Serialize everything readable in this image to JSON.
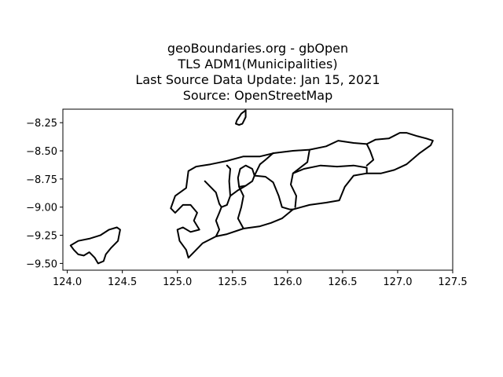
{
  "figure": {
    "title_lines": [
      "geoBoundaries.org - gbOpen",
      "TLS ADM1(Municipalities)",
      "Last Source Data Update: Jan 15, 2021",
      "Source: OpenStreetMap"
    ]
  },
  "chart_data": {
    "type": "map",
    "title": "geoBoundaries.org - gbOpen TLS ADM1(Municipalities) Last Source Data Update: Jan 15, 2021 Source: OpenStreetMap",
    "xlabel": "",
    "ylabel": "",
    "xlim": [
      123.96,
      127.5
    ],
    "ylim": [
      -9.56,
      -8.13
    ],
    "x_ticks": [
      124.0,
      124.5,
      125.0,
      125.5,
      126.0,
      126.5,
      127.0,
      127.5
    ],
    "x_tick_labels": [
      "124.0",
      "124.5",
      "125.0",
      "125.5",
      "126.0",
      "126.5",
      "127.0",
      "127.5"
    ],
    "y_ticks": [
      -8.25,
      -8.5,
      -8.75,
      -9.0,
      -9.25,
      -9.5
    ],
    "y_tick_labels": [
      "−8.25",
      "−8.50",
      "−8.75",
      "−9.00",
      "−9.25",
      "−9.50"
    ],
    "grid": false,
    "features": [
      {
        "name": "mainland-outline",
        "coords": [
          [
            124.94,
            -9.01
          ],
          [
            124.98,
            -8.9
          ],
          [
            125.08,
            -8.83
          ],
          [
            125.1,
            -8.68
          ],
          [
            125.17,
            -8.64
          ],
          [
            125.3,
            -8.62
          ],
          [
            125.45,
            -8.59
          ],
          [
            125.6,
            -8.55
          ],
          [
            125.75,
            -8.55
          ],
          [
            125.88,
            -8.52
          ],
          [
            126.05,
            -8.5
          ],
          [
            126.2,
            -8.49
          ],
          [
            126.35,
            -8.46
          ],
          [
            126.46,
            -8.41
          ],
          [
            126.6,
            -8.43
          ],
          [
            126.72,
            -8.44
          ],
          [
            126.8,
            -8.4
          ],
          [
            126.92,
            -8.39
          ],
          [
            127.02,
            -8.34
          ],
          [
            127.08,
            -8.34
          ],
          [
            127.18,
            -8.37
          ],
          [
            127.26,
            -8.39
          ],
          [
            127.32,
            -8.41
          ],
          [
            127.3,
            -8.45
          ],
          [
            127.2,
            -8.52
          ],
          [
            127.08,
            -8.62
          ],
          [
            126.97,
            -8.67
          ],
          [
            126.85,
            -8.7
          ],
          [
            126.72,
            -8.7
          ],
          [
            126.6,
            -8.72
          ],
          [
            126.52,
            -8.82
          ],
          [
            126.47,
            -8.94
          ],
          [
            126.35,
            -8.96
          ],
          [
            126.2,
            -8.98
          ],
          [
            126.05,
            -9.02
          ],
          [
            125.95,
            -9.1
          ],
          [
            125.85,
            -9.14
          ],
          [
            125.75,
            -9.17
          ],
          [
            125.6,
            -9.19
          ],
          [
            125.45,
            -9.24
          ],
          [
            125.35,
            -9.26
          ],
          [
            125.23,
            -9.32
          ],
          [
            125.15,
            -9.4
          ],
          [
            125.1,
            -9.45
          ],
          [
            125.08,
            -9.38
          ],
          [
            125.02,
            -9.3
          ],
          [
            125.0,
            -9.2
          ],
          [
            125.05,
            -9.18
          ],
          [
            125.12,
            -9.22
          ],
          [
            125.2,
            -9.2
          ],
          [
            125.15,
            -9.12
          ],
          [
            125.18,
            -9.05
          ],
          [
            125.12,
            -8.98
          ],
          [
            125.05,
            -8.98
          ],
          [
            124.98,
            -9.05
          ],
          [
            124.94,
            -9.01
          ]
        ]
      },
      {
        "name": "oecusse-outline",
        "coords": [
          [
            124.03,
            -9.34
          ],
          [
            124.1,
            -9.3
          ],
          [
            124.2,
            -9.28
          ],
          [
            124.3,
            -9.25
          ],
          [
            124.38,
            -9.2
          ],
          [
            124.45,
            -9.18
          ],
          [
            124.48,
            -9.2
          ],
          [
            124.46,
            -9.3
          ],
          [
            124.4,
            -9.36
          ],
          [
            124.35,
            -9.42
          ],
          [
            124.33,
            -9.48
          ],
          [
            124.28,
            -9.5
          ],
          [
            124.25,
            -9.45
          ],
          [
            124.2,
            -9.4
          ],
          [
            124.15,
            -9.43
          ],
          [
            124.1,
            -9.42
          ],
          [
            124.06,
            -9.38
          ],
          [
            124.03,
            -9.34
          ]
        ]
      },
      {
        "name": "atauro-outline",
        "coords": [
          [
            125.54,
            -8.23
          ],
          [
            125.58,
            -8.17
          ],
          [
            125.62,
            -8.14
          ],
          [
            125.62,
            -8.2
          ],
          [
            125.59,
            -8.26
          ],
          [
            125.56,
            -8.27
          ],
          [
            125.53,
            -8.26
          ],
          [
            125.54,
            -8.23
          ]
        ]
      },
      {
        "name": "internal-boundary-1",
        "coords": [
          [
            125.25,
            -8.77
          ],
          [
            125.35,
            -8.87
          ],
          [
            125.38,
            -8.97
          ],
          [
            125.4,
            -9.0
          ],
          [
            125.45,
            -8.98
          ],
          [
            125.48,
            -8.9
          ],
          [
            125.47,
            -8.77
          ],
          [
            125.48,
            -8.66
          ],
          [
            125.45,
            -8.63
          ]
        ]
      },
      {
        "name": "internal-boundary-2",
        "coords": [
          [
            125.4,
            -9.0
          ],
          [
            125.38,
            -9.05
          ],
          [
            125.35,
            -9.12
          ],
          [
            125.38,
            -9.2
          ],
          [
            125.35,
            -9.26
          ]
        ]
      },
      {
        "name": "internal-boundary-3",
        "coords": [
          [
            125.48,
            -8.9
          ],
          [
            125.55,
            -8.85
          ],
          [
            125.62,
            -8.81
          ],
          [
            125.68,
            -8.77
          ],
          [
            125.7,
            -8.72
          ],
          [
            125.68,
            -8.66
          ],
          [
            125.62,
            -8.63
          ],
          [
            125.57,
            -8.66
          ],
          [
            125.55,
            -8.74
          ],
          [
            125.56,
            -8.82
          ],
          [
            125.62,
            -8.81
          ]
        ]
      },
      {
        "name": "internal-boundary-4",
        "coords": [
          [
            125.56,
            -8.82
          ],
          [
            125.6,
            -8.9
          ],
          [
            125.58,
            -9.0
          ],
          [
            125.55,
            -9.1
          ],
          [
            125.6,
            -9.19
          ]
        ]
      },
      {
        "name": "internal-boundary-5",
        "coords": [
          [
            125.7,
            -8.72
          ],
          [
            125.8,
            -8.73
          ],
          [
            125.87,
            -8.78
          ],
          [
            125.92,
            -8.9
          ],
          [
            125.95,
            -9.0
          ],
          [
            126.02,
            -9.02
          ],
          [
            126.05,
            -9.02
          ]
        ]
      },
      {
        "name": "internal-boundary-6",
        "coords": [
          [
            125.87,
            -8.52
          ],
          [
            125.8,
            -8.58
          ],
          [
            125.75,
            -8.62
          ],
          [
            125.7,
            -8.72
          ]
        ]
      },
      {
        "name": "internal-boundary-7",
        "coords": [
          [
            126.2,
            -8.49
          ],
          [
            126.18,
            -8.6
          ],
          [
            126.05,
            -8.7
          ],
          [
            126.03,
            -8.8
          ],
          [
            126.08,
            -8.9
          ],
          [
            126.07,
            -9.0
          ]
        ]
      },
      {
        "name": "internal-boundary-8",
        "coords": [
          [
            126.05,
            -8.7
          ],
          [
            126.15,
            -8.66
          ],
          [
            126.3,
            -8.63
          ],
          [
            126.45,
            -8.64
          ],
          [
            126.6,
            -8.63
          ],
          [
            126.72,
            -8.65
          ],
          [
            126.72,
            -8.7
          ]
        ]
      },
      {
        "name": "internal-boundary-9",
        "coords": [
          [
            126.72,
            -8.44
          ],
          [
            126.75,
            -8.5
          ],
          [
            126.78,
            -8.58
          ],
          [
            126.72,
            -8.63
          ]
        ]
      }
    ]
  }
}
